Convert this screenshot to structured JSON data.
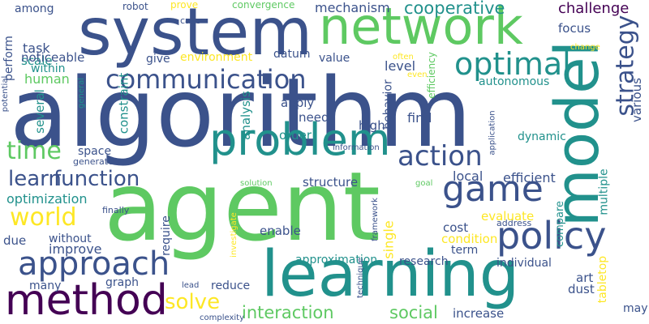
{
  "words": [
    {
      "text": "algorithm",
      "color": "#3b528b",
      "rotate": 0
    },
    {
      "text": "agent",
      "color": "#5ec962",
      "rotate": 0
    },
    {
      "text": "learning",
      "color": "#21918c",
      "rotate": 0
    },
    {
      "text": "system",
      "color": "#3b528b",
      "rotate": 0
    },
    {
      "text": "network",
      "color": "#5ec962",
      "rotate": 0
    },
    {
      "text": "model",
      "color": "#21918c",
      "rotate": -90
    },
    {
      "text": "problem",
      "color": "#21918c",
      "rotate": 0
    },
    {
      "text": "method",
      "color": "#440154",
      "rotate": 0
    },
    {
      "text": "policy",
      "color": "#3b528b",
      "rotate": 0
    },
    {
      "text": "game",
      "color": "#3b528b",
      "rotate": 0
    },
    {
      "text": "approach",
      "color": "#3b528b",
      "rotate": 0
    },
    {
      "text": "strategy",
      "color": "#3b528b",
      "rotate": -90
    },
    {
      "text": "optimal",
      "color": "#21918c",
      "rotate": 0
    },
    {
      "text": "communication",
      "color": "#3b528b",
      "rotate": 0
    },
    {
      "text": "action",
      "color": "#3b528b",
      "rotate": 0
    },
    {
      "text": "world",
      "color": "#fde725",
      "rotate": 0
    },
    {
      "text": "time",
      "color": "#5ec962",
      "rotate": 0
    },
    {
      "text": "learn",
      "color": "#3b528b",
      "rotate": 0
    },
    {
      "text": "function",
      "color": "#3b528b",
      "rotate": 0
    },
    {
      "text": "solve",
      "color": "#fde725",
      "rotate": 0
    },
    {
      "text": "interaction",
      "color": "#5ec962",
      "rotate": 0
    },
    {
      "text": "social",
      "color": "#5ec962",
      "rotate": 0
    },
    {
      "text": "cooperative",
      "color": "#21918c",
      "rotate": 0
    },
    {
      "text": "challenge",
      "color": "#440154",
      "rotate": 0
    },
    {
      "text": "mechanism",
      "color": "#3b528b",
      "rotate": 0
    },
    {
      "text": "focus",
      "color": "#3b528b",
      "rotate": 0
    },
    {
      "text": "optimization",
      "color": "#21918c",
      "rotate": 0
    },
    {
      "text": "human",
      "color": "#5ec962",
      "rotate": 0
    },
    {
      "text": "task",
      "color": "#3b528b",
      "rotate": 0
    },
    {
      "text": "scale",
      "color": "#21918c",
      "rotate": 0
    },
    {
      "text": "perform",
      "color": "#3b528b",
      "rotate": -90
    },
    {
      "text": "among",
      "color": "#3b528b",
      "rotate": 0
    },
    {
      "text": "robot",
      "color": "#3b528b",
      "rotate": 0
    },
    {
      "text": "prove",
      "color": "#fde725",
      "rotate": 0
    },
    {
      "text": "convergence",
      "color": "#5ec962",
      "rotate": 0
    },
    {
      "text": "case",
      "color": "#3b528b",
      "rotate": 0
    },
    {
      "text": "noticeable",
      "color": "#3b528b",
      "rotate": 0
    },
    {
      "text": "within",
      "color": "#21918c",
      "rotate": 0
    },
    {
      "text": "give",
      "color": "#3b528b",
      "rotate": 0
    },
    {
      "text": "environment",
      "color": "#fde725",
      "rotate": 0
    },
    {
      "text": "datum",
      "color": "#3b528b",
      "rotate": 0
    },
    {
      "text": "value",
      "color": "#3b528b",
      "rotate": 0
    },
    {
      "text": "level",
      "color": "#3b528b",
      "rotate": 0
    },
    {
      "text": "often",
      "color": "#fde725",
      "rotate": 0
    },
    {
      "text": "even",
      "color": "#fde725",
      "rotate": 0
    },
    {
      "text": "efficiency",
      "color": "#5ec962",
      "rotate": -90
    },
    {
      "text": "autonomous",
      "color": "#21918c",
      "rotate": 0
    },
    {
      "text": "change",
      "color": "#fde725",
      "rotate": 0
    },
    {
      "text": "address",
      "color": "#3b528b",
      "rotate": 0
    },
    {
      "text": "various",
      "color": "#3b528b",
      "rotate": -90
    },
    {
      "text": "apply",
      "color": "#3b528b",
      "rotate": 0
    },
    {
      "text": "need",
      "color": "#3b528b",
      "rotate": 0
    },
    {
      "text": "order",
      "color": "#21918c",
      "rotate": 0
    },
    {
      "text": "high",
      "color": "#3b528b",
      "rotate": 0
    },
    {
      "text": "find",
      "color": "#3b528b",
      "rotate": 0
    },
    {
      "text": "behavior",
      "color": "#3b528b",
      "rotate": -90
    },
    {
      "text": "analysis",
      "color": "#21918c",
      "rotate": -90
    },
    {
      "text": "constraint",
      "color": "#21918c",
      "rotate": -90
    },
    {
      "text": "several",
      "color": "#21918c",
      "rotate": -90
    },
    {
      "text": "space",
      "color": "#3b528b",
      "rotate": 0
    },
    {
      "text": "generate",
      "color": "#3b528b",
      "rotate": 0
    },
    {
      "text": "general",
      "color": "#21918c",
      "rotate": -90
    },
    {
      "text": "potential",
      "color": "#3b528b",
      "rotate": -90
    },
    {
      "text": "information",
      "color": "#3b528b",
      "rotate": 0
    },
    {
      "text": "application",
      "color": "#3b528b",
      "rotate": -90
    },
    {
      "text": "dynamic",
      "color": "#21918c",
      "rotate": 0
    },
    {
      "text": "local",
      "color": "#3b528b",
      "rotate": 0
    },
    {
      "text": "efficient",
      "color": "#3b528b",
      "rotate": 0
    },
    {
      "text": "structure",
      "color": "#3b528b",
      "rotate": 0
    },
    {
      "text": "solution",
      "color": "#5ec962",
      "rotate": 0
    },
    {
      "text": "goal",
      "color": "#5ec962",
      "rotate": 0
    },
    {
      "text": "multiple",
      "color": "#21918c",
      "rotate": -90
    },
    {
      "text": "finally",
      "color": "#3b528b",
      "rotate": 0
    },
    {
      "text": "investigate",
      "color": "#fde725",
      "rotate": -90
    },
    {
      "text": "framework",
      "color": "#3b528b",
      "rotate": -90
    },
    {
      "text": "single",
      "color": "#fde725",
      "rotate": -90
    },
    {
      "text": "evaluate",
      "color": "#fde725",
      "rotate": 0
    },
    {
      "text": "compare",
      "color": "#21918c",
      "rotate": -90
    },
    {
      "text": "require",
      "color": "#3b528b",
      "rotate": -90
    },
    {
      "text": "enable",
      "color": "#3b528b",
      "rotate": 0
    },
    {
      "text": "cost",
      "color": "#3b528b",
      "rotate": 0
    },
    {
      "text": "condition",
      "color": "#fde725",
      "rotate": 0
    },
    {
      "text": "due",
      "color": "#3b528b",
      "rotate": 0
    },
    {
      "text": "without",
      "color": "#3b528b",
      "rotate": 0
    },
    {
      "text": "improve",
      "color": "#3b528b",
      "rotate": 0
    },
    {
      "text": "approximation",
      "color": "#21918c",
      "rotate": 0
    },
    {
      "text": "term",
      "color": "#3b528b",
      "rotate": 0
    },
    {
      "text": "research",
      "color": "#3b528b",
      "rotate": 0
    },
    {
      "text": "individual",
      "color": "#3b528b",
      "rotate": 0
    },
    {
      "text": "art",
      "color": "#3b528b",
      "rotate": 0
    },
    {
      "text": "dust",
      "color": "#3b528b",
      "rotate": 0
    },
    {
      "text": "tabletop",
      "color": "#fde725",
      "rotate": -90
    },
    {
      "text": "many",
      "color": "#3b528b",
      "rotate": 0
    },
    {
      "text": "graph",
      "color": "#3b528b",
      "rotate": 0
    },
    {
      "text": "lead",
      "color": "#3b528b",
      "rotate": 0
    },
    {
      "text": "reduce",
      "color": "#3b528b",
      "rotate": 0
    },
    {
      "text": "technique",
      "color": "#3b528b",
      "rotate": -90
    },
    {
      "text": "increase",
      "color": "#3b528b",
      "rotate": 0
    },
    {
      "text": "complexity",
      "color": "#3b528b",
      "rotate": 0
    },
    {
      "text": "may",
      "color": "#3b528b",
      "rotate": 0
    }
  ]
}
